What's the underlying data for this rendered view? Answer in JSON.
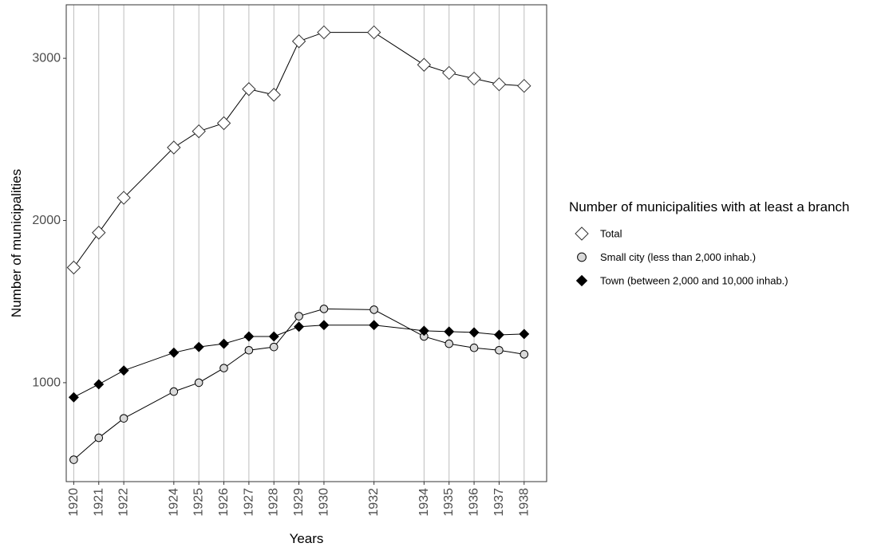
{
  "chart_data": {
    "type": "line",
    "xlabel": "Years",
    "ylabel": "Number of municipalities",
    "x": [
      1920,
      1921,
      1922,
      1924,
      1925,
      1926,
      1927,
      1928,
      1929,
      1930,
      1932,
      1934,
      1935,
      1936,
      1937,
      1938
    ],
    "xlim": [
      1919.7,
      1938.9
    ],
    "ylim": [
      390,
      3330
    ],
    "yticks": [
      1000,
      2000,
      3000
    ],
    "grid": "vertical lines at each year",
    "legend": {
      "title": "Number of municipalities with at least a branch",
      "placement": "right"
    },
    "series": [
      {
        "name": "Total",
        "marker": "open-diamond",
        "values": [
          1710,
          1925,
          2140,
          2450,
          2550,
          2600,
          2810,
          2775,
          3105,
          3160,
          3160,
          2960,
          2910,
          2875,
          2840,
          2830
        ]
      },
      {
        "name": "Small city (less than 2,000 inhab.)",
        "marker": "open-circle",
        "values": [
          525,
          660,
          780,
          945,
          1000,
          1090,
          1200,
          1220,
          1410,
          1455,
          1450,
          1285,
          1240,
          1215,
          1200,
          1175
        ]
      },
      {
        "name": "Town (between 2,000 and 10,000 inhab.)",
        "marker": "filled-diamond",
        "values": [
          910,
          990,
          1075,
          1185,
          1220,
          1240,
          1285,
          1285,
          1345,
          1355,
          1355,
          1320,
          1315,
          1310,
          1295,
          1300
        ]
      }
    ]
  }
}
